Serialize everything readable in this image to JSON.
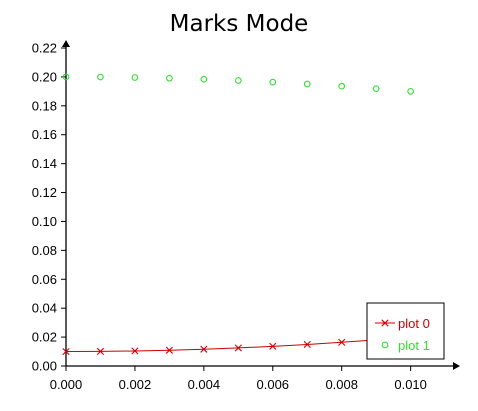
{
  "chart_data": {
    "type": "scatter",
    "title": "Marks Mode",
    "xlabel": "",
    "ylabel": "",
    "xlim": [
      0.0,
      0.0112
    ],
    "ylim": [
      0.0,
      0.22
    ],
    "x_ticks": [
      "0.000",
      "0.002",
      "0.004",
      "0.006",
      "0.008",
      "0.010"
    ],
    "y_ticks": [
      "0.00",
      "0.02",
      "0.04",
      "0.06",
      "0.08",
      "0.10",
      "0.12",
      "0.14",
      "0.16",
      "0.18",
      "0.20",
      "0.22"
    ],
    "grid": false,
    "legend_position": "bottom-right",
    "series": [
      {
        "name": "plot 0",
        "color": "#cc0000",
        "marker": "x",
        "line": true,
        "x": [
          0.0,
          0.001,
          0.002,
          0.003,
          0.004,
          0.005,
          0.006,
          0.007,
          0.008,
          0.009,
          0.01
        ],
        "y": [
          0.01,
          0.0101,
          0.0104,
          0.0109,
          0.0116,
          0.0125,
          0.0136,
          0.0149,
          0.0164,
          0.0181,
          0.02
        ]
      },
      {
        "name": "plot 1",
        "color": "#33dd33",
        "marker": "circle",
        "line": false,
        "x": [
          0.0,
          0.001,
          0.002,
          0.003,
          0.004,
          0.005,
          0.006,
          0.007,
          0.008,
          0.009,
          0.01
        ],
        "y": [
          0.2,
          0.1999,
          0.1996,
          0.1991,
          0.1984,
          0.1975,
          0.1964,
          0.1951,
          0.1936,
          0.1919,
          0.19
        ]
      }
    ]
  }
}
